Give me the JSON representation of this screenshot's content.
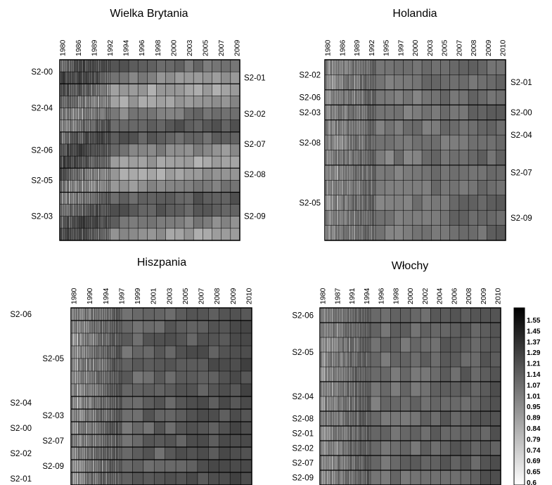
{
  "chart_data": [
    {
      "type": "heatmap",
      "title": "Wielka Brytania",
      "x_tick_labels": [
        "1980",
        "1986",
        "1989",
        "1992",
        "1994",
        "1996",
        "1998",
        "2000",
        "2003",
        "2005",
        "2007",
        "2009"
      ],
      "rows_left": [
        {
          "label": "S2-00",
          "rows": 2
        },
        {
          "label": "S2-04",
          "rows": 4
        },
        {
          "label": "S2-06",
          "rows": 3
        },
        {
          "label": "S2-05",
          "rows": 2
        },
        {
          "label": "S2-03",
          "rows": 4
        }
      ],
      "rows_right": [
        {
          "label": "S2-01",
          "rows": 3
        },
        {
          "label": "S2-02",
          "rows": 3
        },
        {
          "label": "S2-07",
          "rows": 2
        },
        {
          "label": "S2-08",
          "rows": 3
        },
        {
          "label": "S2-09",
          "rows": 4
        }
      ],
      "start_cols": 28,
      "end_cols": 14,
      "value_low": 0.95,
      "value_high": 1.25
    },
    {
      "type": "heatmap",
      "title": "Holandia",
      "x_tick_labels": [
        "1980",
        "1986",
        "1989",
        "1992",
        "1995",
        "1997",
        "2000",
        "2003",
        "2005",
        "2007",
        "2008",
        "2009",
        "2010"
      ],
      "rows_left": [
        {
          "label": "S2-02",
          "rows": 2
        },
        {
          "label": "S2-06",
          "rows": 1
        },
        {
          "label": "S2-03",
          "rows": 1
        },
        {
          "label": "S2-08",
          "rows": 3
        },
        {
          "label": "S2-05",
          "rows": 5
        }
      ],
      "rows_right": [
        {
          "label": "S2-01",
          "rows": 3
        },
        {
          "label": "S2-00",
          "rows": 1
        },
        {
          "label": "S2-04",
          "rows": 2
        },
        {
          "label": "S2-07",
          "rows": 3
        },
        {
          "label": "S2-09",
          "rows": 3
        }
      ],
      "start_cols": 30,
      "end_cols": 14,
      "value_low": 0.9,
      "value_high": 1.2
    },
    {
      "type": "heatmap",
      "title": "Hiszpania",
      "x_tick_labels": [
        "1980",
        "1990",
        "1994",
        "1997",
        "1999",
        "2001",
        "2003",
        "2005",
        "2007",
        "2008",
        "2009",
        "2010"
      ],
      "rows_left": [
        {
          "label": "S2-06",
          "rows": 1
        },
        {
          "label": "S2-05",
          "rows": 6
        },
        {
          "label": "S2-04",
          "rows": 1
        },
        {
          "label": "S2-03",
          "rows": 1
        },
        {
          "label": "S2-00",
          "rows": 1
        },
        {
          "label": "S2-07",
          "rows": 1
        },
        {
          "label": "S2-02",
          "rows": 1
        },
        {
          "label": "S2-09",
          "rows": 1
        },
        {
          "label": "S2-01",
          "rows": 1
        }
      ],
      "start_cols": 28,
      "end_cols": 12,
      "value_low": 0.9,
      "value_high": 1.3
    },
    {
      "type": "heatmap",
      "title": "Włochy",
      "x_tick_labels": [
        "1980",
        "1987",
        "1991",
        "1994",
        "1996",
        "1998",
        "2000",
        "2002",
        "2004",
        "2006",
        "2008",
        "2009",
        "2010"
      ],
      "rows_left": [
        {
          "label": "S2-06",
          "rows": 1
        },
        {
          "label": "S2-05",
          "rows": 4
        },
        {
          "label": "S2-04",
          "rows": 2
        },
        {
          "label": "S2-08",
          "rows": 1
        },
        {
          "label": "S2-01",
          "rows": 1
        },
        {
          "label": "S2-02",
          "rows": 1
        },
        {
          "label": "S2-07",
          "rows": 1
        },
        {
          "label": "S2-09",
          "rows": 1
        }
      ],
      "start_cols": 30,
      "end_cols": 13,
      "value_low": 0.9,
      "value_high": 1.25
    }
  ],
  "colorbar": {
    "labels": [
      "1.55",
      "1.45",
      "1.37",
      "1.29",
      "1.21",
      "1.14",
      "1.07",
      "1.01",
      "0.95",
      "0.89",
      "0.84",
      "0.79",
      "0.74",
      "0.69",
      "0.65",
      "0.6"
    ],
    "min": 0.6,
    "max": 1.6,
    "color_high": "#000000",
    "color_low": "#ffffff"
  }
}
